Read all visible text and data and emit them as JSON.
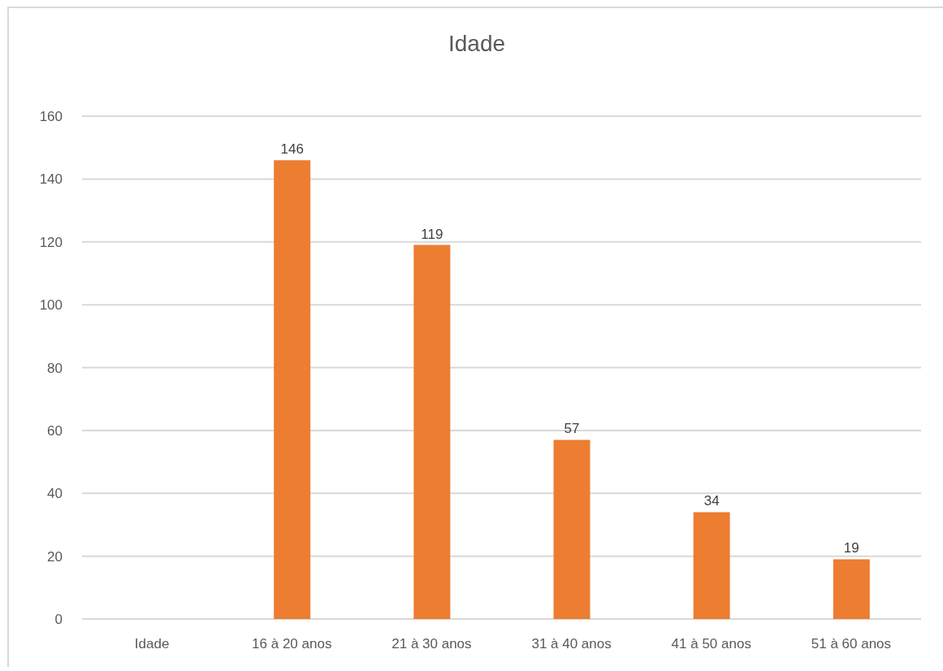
{
  "chart_data": {
    "type": "bar",
    "title": "Idade",
    "categories": [
      "Idade",
      "16 à 20 anos",
      "21 à 30 anos",
      "31 à 40 anos",
      "41 à 50 anos",
      "51 à 60 anos"
    ],
    "values": [
      null,
      146,
      119,
      57,
      34,
      19
    ],
    "color": "#ed7d31",
    "ylim": [
      0,
      160
    ],
    "yticks": [
      0,
      20,
      40,
      60,
      80,
      100,
      120,
      140,
      160
    ],
    "grid": "y",
    "data_labels": true
  }
}
